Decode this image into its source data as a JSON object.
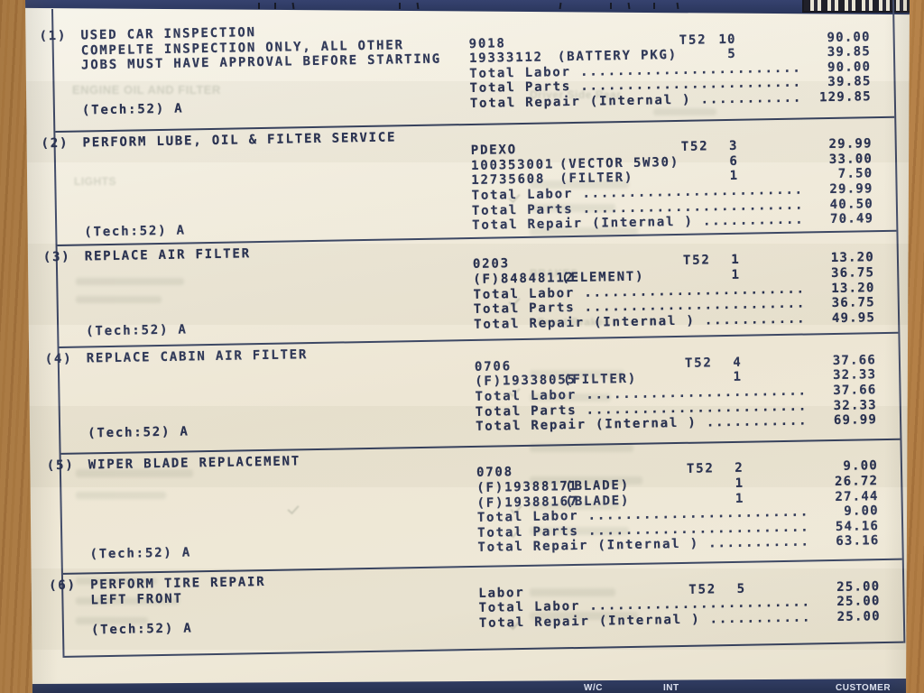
{
  "document": {
    "footer_bar": {
      "labels": [
        "W/C",
        "INT",
        "CUSTOMER"
      ]
    },
    "ghost_labels": [
      "ENGINE OIL AND FILTER",
      "Driver Side Rear",
      "LIGHTS",
      "BRAKES",
      "Front Brakes"
    ],
    "jobs": [
      {
        "num": "(1)",
        "titles": [
          "USED CAR INSPECTION",
          "COMPELTE INSPECTION ONLY, ALL OTHER",
          "JOBS MUST HAVE APPROVAL BEFORE STARTING"
        ],
        "tech": "(Tech:52) A",
        "rows": [
          {
            "code": "9018",
            "note": "",
            "t": "T52",
            "qty": "10",
            "amt": "90.00"
          },
          {
            "code": "19333112",
            "note": "(BATTERY PKG)",
            "t": "",
            "qty": "5",
            "amt": "39.85"
          }
        ],
        "totals": [
          {
            "label": "Total Labor",
            "amt": "90.00"
          },
          {
            "label": "Total Parts",
            "amt": "39.85"
          },
          {
            "label": "Total Repair (Internal )",
            "amt": "129.85"
          }
        ]
      },
      {
        "num": "(2)",
        "titles": [
          "PERFORM LUBE, OIL & FILTER SERVICE"
        ],
        "tech": "(Tech:52) A",
        "rows": [
          {
            "code": "PDEXO",
            "note": "",
            "t": "T52",
            "qty": "3",
            "amt": "29.99"
          },
          {
            "code": "100353001",
            "note": "(VECTOR 5W30)",
            "t": "",
            "qty": "6",
            "amt": "33.00"
          },
          {
            "code": "12735608",
            "note": "(FILTER)",
            "t": "",
            "qty": "1",
            "amt": "7.50"
          }
        ],
        "totals": [
          {
            "label": "Total Labor",
            "amt": "29.99"
          },
          {
            "label": "Total Parts",
            "amt": "40.50"
          },
          {
            "label": "Total Repair (Internal )",
            "amt": "70.49"
          }
        ]
      },
      {
        "num": "(3)",
        "titles": [
          "REPLACE AIR FILTER"
        ],
        "tech": "(Tech:52) A",
        "rows": [
          {
            "code": "0203",
            "note": "",
            "t": "T52",
            "qty": "1",
            "amt": "13.20"
          },
          {
            "code": "(F)84848112",
            "note": "(ELEMENT)",
            "t": "",
            "qty": "1",
            "amt": "36.75"
          }
        ],
        "totals": [
          {
            "label": "Total Labor",
            "amt": "13.20"
          },
          {
            "label": "Total Parts",
            "amt": "36.75"
          },
          {
            "label": "Total Repair (Internal )",
            "amt": "49.95"
          }
        ]
      },
      {
        "num": "(4)",
        "titles": [
          "REPLACE CABIN AIR FILTER"
        ],
        "tech": "(Tech:52) A",
        "rows": [
          {
            "code": "0706",
            "note": "",
            "t": "T52",
            "qty": "4",
            "amt": "37.66"
          },
          {
            "code": "(F)19338055",
            "note": "(FILTER)",
            "t": "",
            "qty": "1",
            "amt": "32.33"
          }
        ],
        "totals": [
          {
            "label": "Total Labor",
            "amt": "37.66"
          },
          {
            "label": "Total Parts",
            "amt": "32.33"
          },
          {
            "label": "Total Repair (Internal )",
            "amt": "69.99"
          }
        ]
      },
      {
        "num": "(5)",
        "titles": [
          "WIPER BLADE REPLACEMENT"
        ],
        "tech": "(Tech:52) A",
        "rows": [
          {
            "code": "0708",
            "note": "",
            "t": "T52",
            "qty": "2",
            "amt": "9.00"
          },
          {
            "code": "(F)19388171",
            "note": "(BLADE)",
            "t": "",
            "qty": "1",
            "amt": "26.72"
          },
          {
            "code": "(F)19388167",
            "note": "(BLADE)",
            "t": "",
            "qty": "1",
            "amt": "27.44"
          }
        ],
        "totals": [
          {
            "label": "Total Labor",
            "amt": "9.00"
          },
          {
            "label": "Total Parts",
            "amt": "54.16"
          },
          {
            "label": "Total Repair (Internal )",
            "amt": "63.16"
          }
        ]
      },
      {
        "num": "(6)",
        "titles": [
          "PERFORM TIRE REPAIR",
          "LEFT FRONT"
        ],
        "tech": "(Tech:52) A",
        "rows": [
          {
            "code": "Labor",
            "note": "",
            "t": "T52",
            "qty": "5",
            "amt": "25.00"
          }
        ],
        "totals": [
          {
            "label": "Total Labor",
            "amt": "25.00"
          },
          {
            "label": "Total Repair (Internal )",
            "amt": "25.00"
          }
        ]
      }
    ]
  }
}
